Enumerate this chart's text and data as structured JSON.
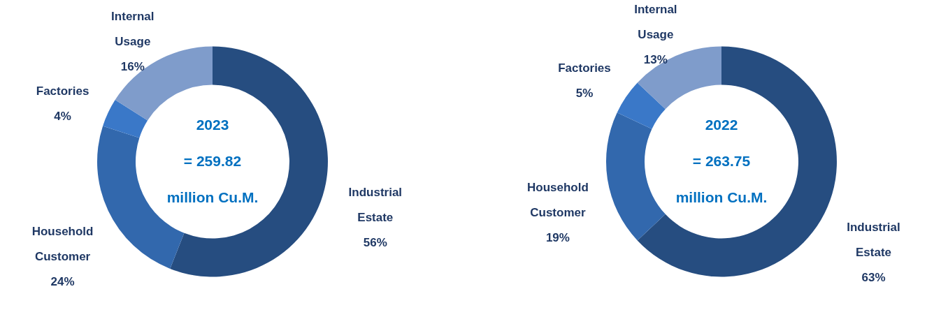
{
  "chart_data": [
    {
      "type": "donut",
      "title": "2023",
      "annotations": [
        "= 259.82",
        "million Cu.M."
      ],
      "categories": [
        "Industrial Estate",
        "Household Customer",
        "Factories",
        "Internal Usage"
      ],
      "values": [
        56,
        24,
        4,
        16
      ],
      "value_labels": [
        "56%",
        "24%",
        "4%",
        "16%"
      ],
      "colors": [
        "#264d80",
        "#3268ad",
        "#3a78c8",
        "#7f9ccb"
      ],
      "legend": false
    },
    {
      "type": "donut",
      "title": "2022",
      "annotations": [
        "= 263.75",
        "million Cu.M."
      ],
      "categories": [
        "Industrial Estate",
        "Household Customer",
        "Factories",
        "Internal Usage"
      ],
      "values": [
        63,
        19,
        5,
        13
      ],
      "value_labels": [
        "63%",
        "19%",
        "5%",
        "13%"
      ],
      "colors": [
        "#264d80",
        "#3268ad",
        "#3a78c8",
        "#7f9ccb"
      ],
      "legend": false
    }
  ]
}
